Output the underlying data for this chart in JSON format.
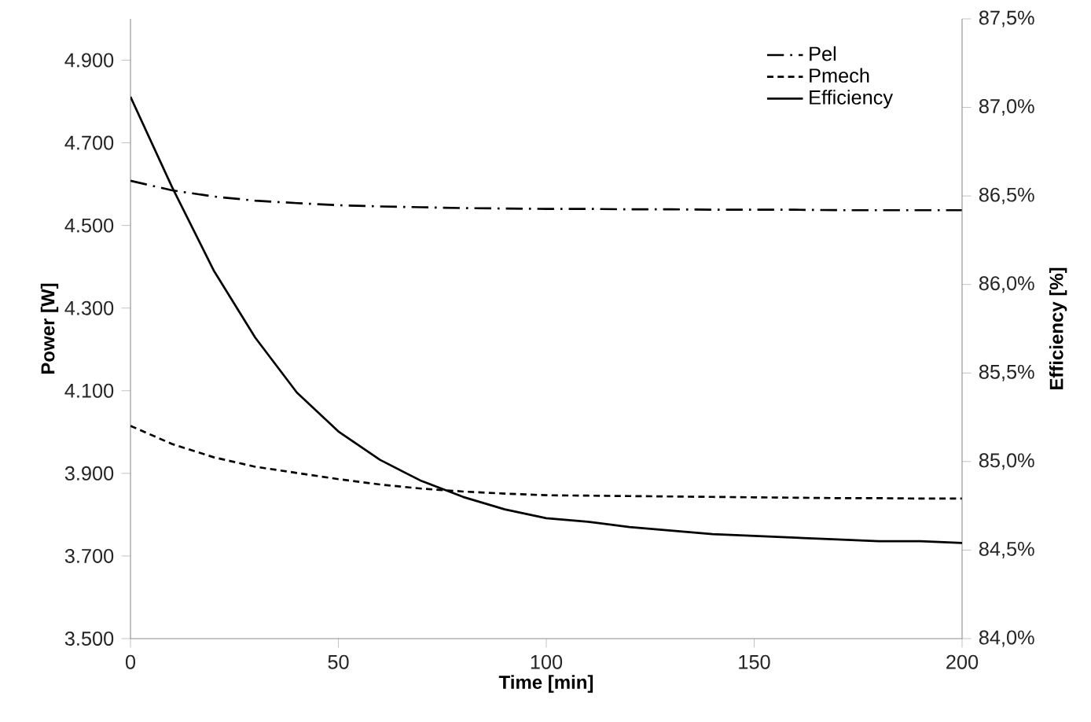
{
  "chart_data": {
    "type": "line",
    "x": [
      0,
      10,
      20,
      30,
      40,
      50,
      60,
      70,
      80,
      90,
      100,
      110,
      120,
      130,
      140,
      150,
      160,
      170,
      180,
      190,
      200
    ],
    "series": [
      {
        "name": "Pel",
        "color": "#000000",
        "line_style": "dashdot",
        "axis": "y",
        "values": [
          4608,
          4585,
          4570,
          4560,
          4554,
          4549,
          4546,
          4544,
          4542,
          4541,
          4540,
          4540,
          4539,
          4539,
          4538,
          4538,
          4538,
          4537,
          4537,
          4537,
          4537
        ]
      },
      {
        "name": "Pmech",
        "color": "#000000",
        "line_style": "dashed",
        "axis": "y",
        "values": [
          4015,
          3971,
          3939,
          3916,
          3901,
          3886,
          3873,
          3863,
          3856,
          3851,
          3847,
          3846,
          3845,
          3844,
          3843,
          3842,
          3841,
          3840,
          3840,
          3839,
          3839
        ]
      },
      {
        "name": "Efficiency",
        "color": "#000000",
        "line_style": "solid",
        "axis": "y2",
        "values": [
          87.06,
          86.55,
          86.08,
          85.7,
          85.39,
          85.17,
          85.01,
          84.89,
          84.8,
          84.73,
          84.68,
          84.66,
          84.63,
          84.61,
          84.59,
          84.58,
          84.57,
          84.56,
          84.55,
          84.55,
          84.54
        ]
      }
    ],
    "xlabel": "Time [min]",
    "ylabel": "Power [W]",
    "y2label": "Efficiency [%]",
    "xlim": [
      0,
      200
    ],
    "xticks": [
      0,
      50,
      100,
      150,
      200
    ],
    "ylim": [
      3500,
      5000
    ],
    "yticks": [
      {
        "value": 3500,
        "label": "3.500"
      },
      {
        "value": 3700,
        "label": "3.700"
      },
      {
        "value": 3900,
        "label": "3.900"
      },
      {
        "value": 4100,
        "label": "4.100"
      },
      {
        "value": 4300,
        "label": "4.300"
      },
      {
        "value": 4500,
        "label": "4.500"
      },
      {
        "value": 4700,
        "label": "4.700"
      },
      {
        "value": 4900,
        "label": "4.900"
      }
    ],
    "y2lim": [
      84.0,
      87.5
    ],
    "y2ticks": [
      {
        "value": 84.0,
        "label": "84,0%"
      },
      {
        "value": 84.5,
        "label": "84,5%"
      },
      {
        "value": 85.0,
        "label": "85,0%"
      },
      {
        "value": 85.5,
        "label": "85,5%"
      },
      {
        "value": 86.0,
        "label": "86,0%"
      },
      {
        "value": 86.5,
        "label": "86,5%"
      },
      {
        "value": 87.0,
        "label": "87,0%"
      },
      {
        "value": 87.5,
        "label": "87,5%"
      }
    ],
    "grid": false,
    "legend": "top right",
    "marker": "none"
  }
}
